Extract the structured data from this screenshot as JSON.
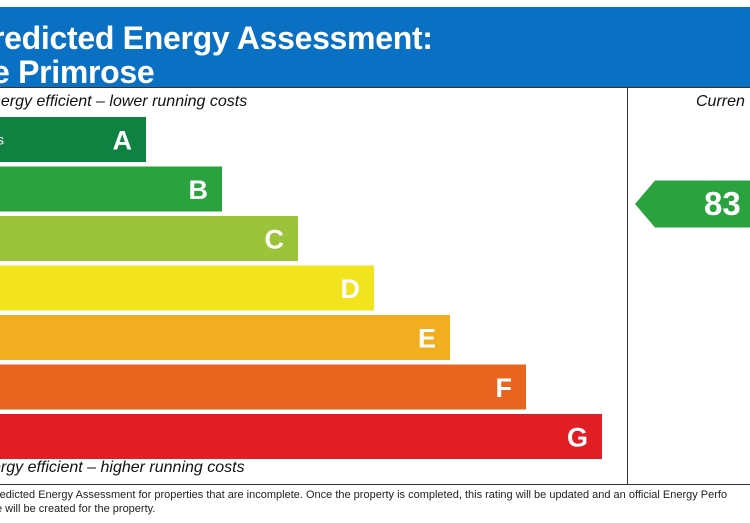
{
  "header": {
    "title_line1": "redicted Energy Assessment:",
    "title_line2": "e Primrose"
  },
  "labels": {
    "top": "nergy efficient – lower running costs",
    "bottom": "ergy efficient – higher running costs",
    "current_column": "Curren"
  },
  "footnote": {
    "line1": "redicted Energy Assessment for properties that are incomplete. Once the property is completed, this rating will be updated and an official Energy Perfo",
    "line2": "e will be created for the property."
  },
  "chart_data": {
    "type": "bar",
    "bands": [
      {
        "letter": "A",
        "range_text": "s",
        "color": "#0f8140"
      },
      {
        "letter": "B",
        "range_text": "",
        "color": "#2aa23d"
      },
      {
        "letter": "C",
        "range_text": "",
        "color": "#9bc43b"
      },
      {
        "letter": "D",
        "range_text": "",
        "color": "#f1e31e"
      },
      {
        "letter": "E",
        "range_text": "",
        "color": "#f3ad20"
      },
      {
        "letter": "F",
        "range_text": "",
        "color": "#e9641f"
      },
      {
        "letter": "G",
        "range_text": "",
        "color": "#e11e24"
      }
    ],
    "current": {
      "value": "83",
      "band": "B",
      "color": "#2aa23d"
    }
  }
}
